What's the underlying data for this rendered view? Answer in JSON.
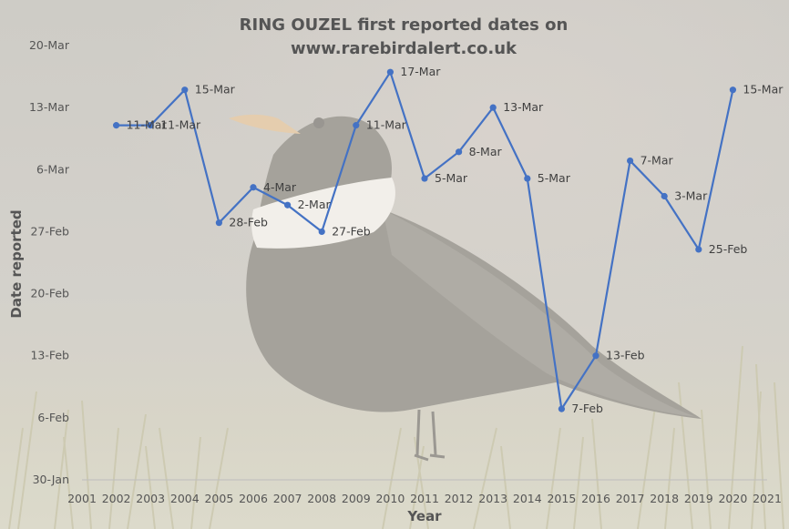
{
  "chart_data": {
    "type": "line",
    "title": [
      "RING OUZEL first reported dates on",
      "www.rarebirdalert.co.uk"
    ],
    "xlabel": "Year",
    "ylabel": "Date reported",
    "x_ticks": [
      "2001",
      "2002",
      "2003",
      "2004",
      "2005",
      "2006",
      "2007",
      "2008",
      "2009",
      "2010",
      "2011",
      "2012",
      "2013",
      "2014",
      "2015",
      "2016",
      "2017",
      "2018",
      "2019",
      "2020",
      "2021"
    ],
    "xlim": [
      2001,
      2021
    ],
    "y_ticks": [
      {
        "day": 0,
        "label": "30-Jan"
      },
      {
        "day": 7,
        "label": "6-Feb"
      },
      {
        "day": 14,
        "label": "13-Feb"
      },
      {
        "day": 21,
        "label": "20-Feb"
      },
      {
        "day": 28,
        "label": "27-Feb"
      },
      {
        "day": 35,
        "label": "6-Mar"
      },
      {
        "day": 42,
        "label": "13-Mar"
      },
      {
        "day": 49,
        "label": "20-Mar"
      }
    ],
    "ylim": [
      0,
      49
    ],
    "series": [
      {
        "color": "#4472C4",
        "points": [
          {
            "x": 2002,
            "y": 40,
            "label": "11-Mar"
          },
          {
            "x": 2003,
            "y": 40,
            "label": "11-Mar"
          },
          {
            "x": 2004,
            "y": 44,
            "label": "15-Mar"
          },
          {
            "x": 2005,
            "y": 29,
            "label": "28-Feb"
          },
          {
            "x": 2006,
            "y": 33,
            "label": "4-Mar"
          },
          {
            "x": 2007,
            "y": 31,
            "label": "2-Mar"
          },
          {
            "x": 2008,
            "y": 28,
            "label": "27-Feb"
          },
          {
            "x": 2009,
            "y": 40,
            "label": "11-Mar"
          },
          {
            "x": 2010,
            "y": 46,
            "label": "17-Mar"
          },
          {
            "x": 2011,
            "y": 34,
            "label": "5-Mar"
          },
          {
            "x": 2012,
            "y": 37,
            "label": "8-Mar"
          },
          {
            "x": 2013,
            "y": 42,
            "label": "13-Mar"
          },
          {
            "x": 2014,
            "y": 34,
            "label": "5-Mar"
          },
          {
            "x": 2015,
            "y": 8,
            "label": "7-Feb"
          },
          {
            "x": 2016,
            "y": 14,
            "label": "13-Feb"
          },
          {
            "x": 2017,
            "y": 36,
            "label": "7-Mar"
          },
          {
            "x": 2018,
            "y": 32,
            "label": "3-Mar"
          },
          {
            "x": 2019,
            "y": 26,
            "label": "25-Feb"
          },
          {
            "x": 2020,
            "y": 44,
            "label": "15-Mar"
          }
        ]
      }
    ],
    "grid": false,
    "legend": "none",
    "background": "faded photo of a ring ouzel on grass"
  }
}
